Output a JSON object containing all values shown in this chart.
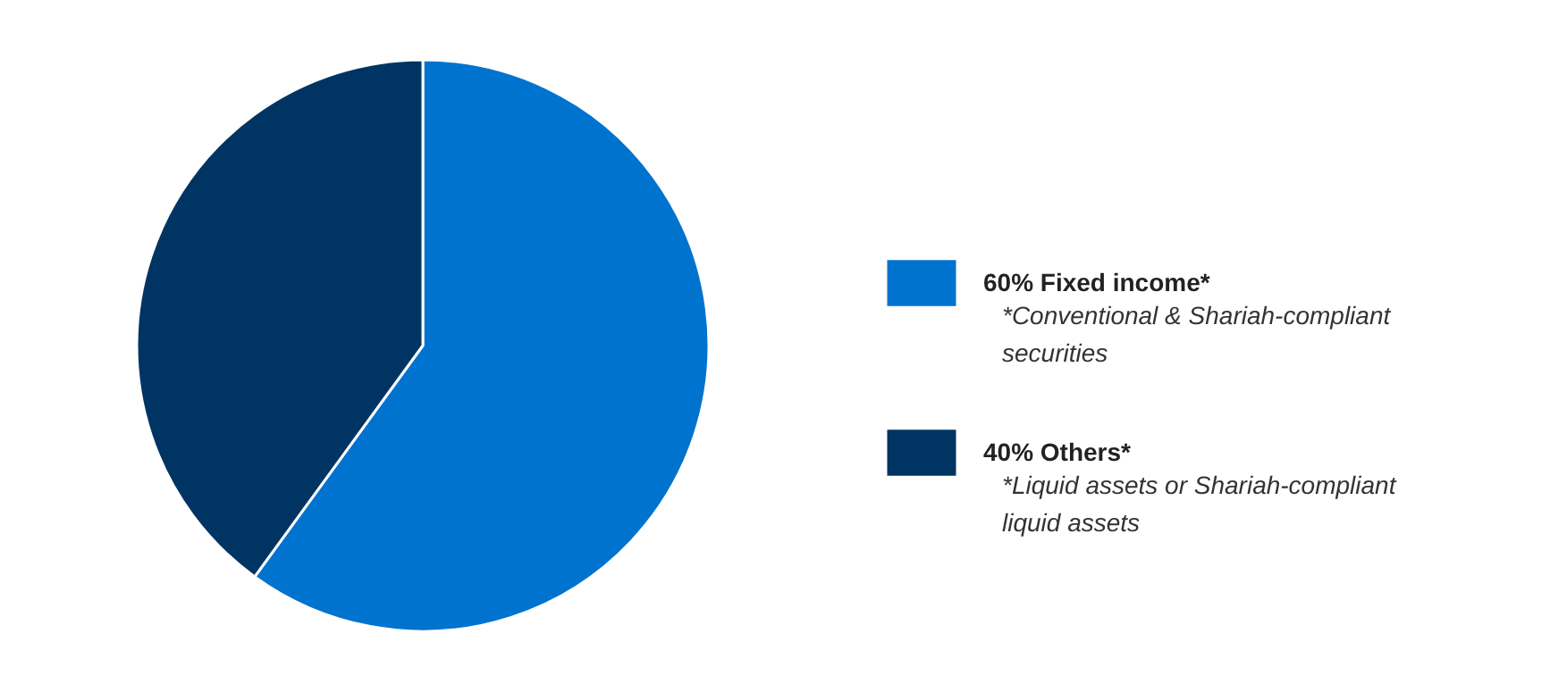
{
  "chart_data": {
    "type": "pie",
    "categories": [
      "60% Fixed income*",
      "40% Others*"
    ],
    "values": [
      60,
      40
    ],
    "colors": [
      "#0073cf",
      "#003462"
    ],
    "annotations": [
      "*Conventional & Shariah-compliant\nsecurities",
      "*Liquid assets or Shariah-compliant\nliquid assets"
    ],
    "legend": "right"
  }
}
